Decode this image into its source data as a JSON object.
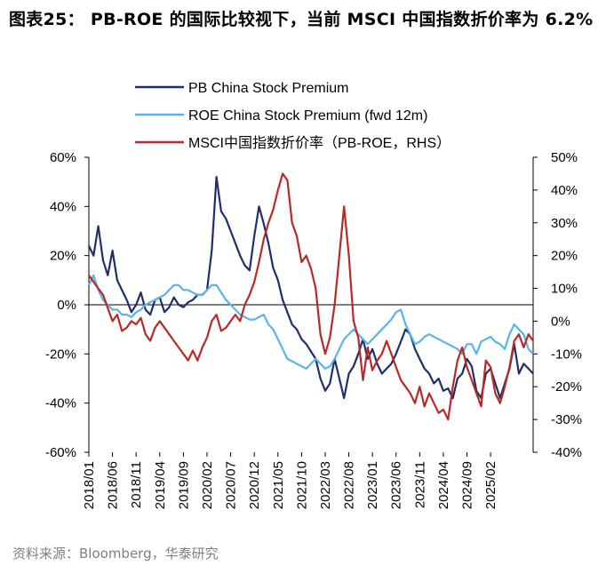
{
  "title": "图表25： PB-ROE 的国际比较视下，当前 MSCI 中国指数折价率为 6.2%",
  "source": "资料来源：Bloomberg，华泰研究",
  "chart_data": {
    "type": "line",
    "title": "图表25： PB-ROE 的国际比较视下，当前 MSCI 中国指数折价率为 6.2%",
    "xlabel": "",
    "ylabel": "",
    "y_left": {
      "ticks": [
        "60%",
        "40%",
        "20%",
        "0%",
        "-20%",
        "-40%",
        "-60%"
      ],
      "range": [
        -60,
        60
      ]
    },
    "y_right": {
      "ticks": [
        "50%",
        "40%",
        "30%",
        "20%",
        "10%",
        "0%",
        "-10%",
        "-20%",
        "-30%",
        "-40%"
      ],
      "range": [
        -40,
        50
      ]
    },
    "x_ticks": [
      "2018/01",
      "2018/06",
      "2018/11",
      "2019/04",
      "2019/09",
      "2020/02",
      "2020/07",
      "2020/12",
      "2021/05",
      "2021/10",
      "2022/03",
      "2022/08",
      "2023/01",
      "2023/06",
      "2023/11",
      "2024/04",
      "2024/09",
      "2025/02"
    ],
    "x_range": [
      0,
      94
    ],
    "x_unit": "months since 2018/01",
    "legend_position": "top",
    "series": [
      {
        "name": "PB China Stock Premium",
        "axis": "left",
        "color": "#1f2f6b",
        "x": [
          0,
          1,
          2,
          3,
          4,
          5,
          6,
          7,
          8,
          9,
          10,
          11,
          12,
          13,
          14,
          15,
          16,
          17,
          18,
          19,
          20,
          21,
          22,
          23,
          24,
          25,
          26,
          27,
          28,
          29,
          30,
          31,
          32,
          33,
          34,
          35,
          36,
          37,
          38,
          39,
          40,
          41,
          42,
          43,
          44,
          45,
          46,
          47,
          48,
          49,
          50,
          51,
          52,
          53,
          54,
          55,
          56,
          57,
          58,
          59,
          60,
          61,
          62,
          63,
          64,
          65,
          66,
          67,
          68,
          69,
          70,
          71,
          72,
          73,
          74,
          75,
          76,
          77,
          78,
          79,
          80,
          81,
          82,
          83,
          84,
          85,
          86,
          87,
          88,
          89,
          90,
          91,
          92,
          93,
          94
        ],
        "y": [
          24,
          20,
          32,
          18,
          12,
          22,
          10,
          6,
          2,
          -3,
          0,
          5,
          -2,
          -4,
          2,
          3,
          -3,
          -1,
          3,
          0,
          -1,
          1,
          2,
          4,
          4,
          6,
          22,
          52,
          38,
          35,
          30,
          25,
          20,
          16,
          14,
          28,
          40,
          33,
          25,
          15,
          10,
          2,
          -3,
          -8,
          -10,
          -14,
          -16,
          -19,
          -22,
          -30,
          -35,
          -32,
          -22,
          -30,
          -38,
          -28,
          -25,
          -20,
          -14,
          -22,
          -18,
          -24,
          -28,
          -26,
          -24,
          -20,
          -15,
          -10,
          -12,
          -18,
          -22,
          -26,
          -28,
          -32,
          -30,
          -35,
          -34,
          -38,
          -30,
          -28,
          -22,
          -25,
          -35,
          -38,
          -28,
          -26,
          -32,
          -38,
          -32,
          -26,
          -16,
          -28,
          -24,
          -26,
          -28
        ]
      },
      {
        "name": "ROE China Stock Premium (fwd 12m)",
        "axis": "left",
        "color": "#5bb4e8",
        "x": [
          0,
          1,
          2,
          3,
          4,
          5,
          6,
          7,
          8,
          9,
          10,
          11,
          12,
          13,
          14,
          15,
          16,
          17,
          18,
          19,
          20,
          21,
          22,
          23,
          24,
          25,
          26,
          27,
          28,
          29,
          30,
          31,
          32,
          33,
          34,
          35,
          36,
          37,
          38,
          39,
          40,
          41,
          42,
          43,
          44,
          45,
          46,
          47,
          48,
          49,
          50,
          51,
          52,
          53,
          54,
          55,
          56,
          57,
          58,
          59,
          60,
          61,
          62,
          63,
          64,
          65,
          66,
          67,
          68,
          69,
          70,
          71,
          72,
          73,
          74,
          75,
          76,
          77,
          78,
          79,
          80,
          81,
          82,
          83,
          84,
          85,
          86,
          87,
          88,
          89,
          90,
          91,
          92,
          93,
          94
        ],
        "y": [
          8,
          12,
          6,
          2,
          0,
          -2,
          -2,
          -4,
          -4,
          -5,
          -3,
          -2,
          0,
          1,
          2,
          3,
          4,
          6,
          8,
          8,
          6,
          6,
          5,
          4,
          4,
          6,
          8,
          8,
          5,
          2,
          0,
          -2,
          -4,
          -5,
          -6,
          -6,
          -5,
          -4,
          -8,
          -10,
          -14,
          -18,
          -22,
          -23,
          -24,
          -25,
          -26,
          -24,
          -22,
          -24,
          -26,
          -25,
          -22,
          -18,
          -14,
          -12,
          -10,
          -12,
          -14,
          -16,
          -14,
          -12,
          -10,
          -8,
          -6,
          -3,
          -2,
          -8,
          -12,
          -16,
          -15,
          -13,
          -12,
          -13,
          -14,
          -15,
          -16,
          -17,
          -18,
          -20,
          -16,
          -16,
          -20,
          -15,
          -14,
          -13,
          -15,
          -16,
          -18,
          -12,
          -8,
          -10,
          -12,
          -18,
          -20
        ]
      },
      {
        "name": "MSCI中国指数折价率（PB-ROE，RHS）",
        "axis": "right",
        "color": "#b72a26",
        "x": [
          0,
          1,
          2,
          3,
          4,
          5,
          6,
          7,
          8,
          9,
          10,
          11,
          12,
          13,
          14,
          15,
          16,
          17,
          18,
          19,
          20,
          21,
          22,
          23,
          24,
          25,
          26,
          27,
          28,
          29,
          30,
          31,
          32,
          33,
          34,
          35,
          36,
          37,
          38,
          39,
          40,
          41,
          42,
          43,
          44,
          45,
          46,
          47,
          48,
          49,
          50,
          51,
          52,
          53,
          54,
          55,
          56,
          57,
          58,
          59,
          60,
          61,
          62,
          63,
          64,
          65,
          66,
          67,
          68,
          69,
          70,
          71,
          72,
          73,
          74,
          75,
          76,
          77,
          78,
          79,
          80,
          81,
          82,
          83,
          84,
          85,
          86,
          87,
          88,
          89,
          90,
          91,
          92,
          93,
          94
        ],
        "y": [
          14,
          12,
          10,
          8,
          4,
          0,
          2,
          -3,
          -2,
          0,
          -1,
          1,
          -4,
          -6,
          -2,
          0,
          -2,
          -4,
          -6,
          -8,
          -10,
          -12,
          -9,
          -12,
          -8,
          -5,
          0,
          2,
          -3,
          -2,
          0,
          2,
          0,
          5,
          8,
          12,
          18,
          25,
          30,
          34,
          40,
          45,
          43,
          30,
          26,
          18,
          20,
          16,
          10,
          -4,
          -10,
          -5,
          5,
          20,
          35,
          20,
          0,
          -5,
          -18,
          -8,
          -15,
          -12,
          -10,
          -6,
          -10,
          -14,
          -18,
          -20,
          -22,
          -25,
          -20,
          -26,
          -22,
          -25,
          -28,
          -27,
          -30,
          -20,
          -12,
          -8,
          -14,
          -18,
          -22,
          -26,
          -12,
          -14,
          -22,
          -25,
          -20,
          -14,
          -6,
          -4,
          -8,
          -4,
          -6
        ]
      }
    ]
  }
}
